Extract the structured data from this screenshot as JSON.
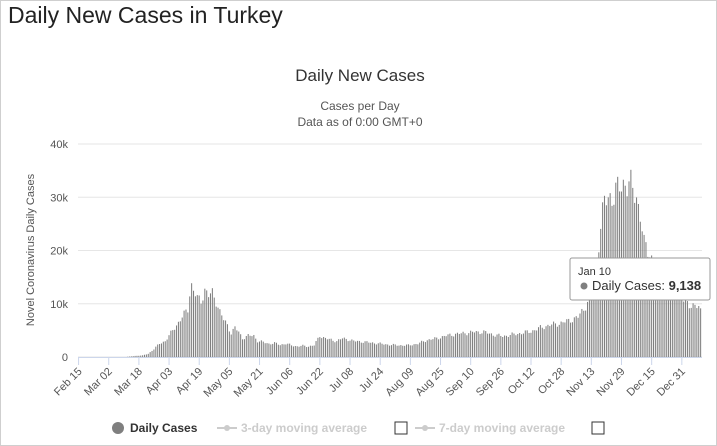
{
  "page_title": "Daily New Cases in Turkey",
  "chart_data": {
    "type": "bar",
    "title": "Daily New Cases",
    "subtitle_lines": [
      "Cases per Day",
      "Data as of 0:00 GMT+0"
    ],
    "ylabel": "Novel Coronavirus Daily Cases",
    "xlabel": "",
    "ylim": [
      0,
      40000
    ],
    "y_ticks": [
      0,
      10000,
      20000,
      30000,
      40000
    ],
    "y_tick_labels": [
      "0",
      "10k",
      "20k",
      "30k",
      "40k"
    ],
    "x_tick_labels": [
      "Feb 15",
      "Mar 02",
      "Mar 18",
      "Apr 03",
      "Apr 19",
      "May 05",
      "May 21",
      "Jun 06",
      "Jun 22",
      "Jul 08",
      "Jul 24",
      "Aug 09",
      "Aug 25",
      "Sep 10",
      "Sep 26",
      "Oct 12",
      "Oct 28",
      "Nov 13",
      "Nov 29",
      "Dec 15",
      "Dec 31"
    ],
    "start_date": "Feb 15",
    "day_count": 331,
    "series": [
      {
        "name": "Daily Cases",
        "color": "#7f7f7f",
        "keyframes": [
          [
            0,
            0
          ],
          [
            24,
            0
          ],
          [
            25,
            1
          ],
          [
            30,
            200
          ],
          [
            34,
            300
          ],
          [
            37,
            600
          ],
          [
            40,
            1500
          ],
          [
            43,
            2500
          ],
          [
            46,
            3000
          ],
          [
            48,
            4000
          ],
          [
            50,
            5000
          ],
          [
            52,
            6000
          ],
          [
            54,
            7000
          ],
          [
            56,
            8000
          ],
          [
            58,
            9000
          ],
          [
            59,
            12000
          ],
          [
            60,
            13500
          ],
          [
            61,
            12500
          ],
          [
            63,
            11000
          ],
          [
            65,
            10500
          ],
          [
            67,
            12700
          ],
          [
            69,
            11500
          ],
          [
            71,
            12000
          ],
          [
            73,
            10500
          ],
          [
            75,
            8500
          ],
          [
            77,
            7000
          ],
          [
            79,
            6000
          ],
          [
            81,
            4500
          ],
          [
            83,
            5500
          ],
          [
            85,
            4700
          ],
          [
            87,
            3500
          ],
          [
            90,
            4000
          ],
          [
            93,
            4000
          ],
          [
            95,
            3000
          ],
          [
            98,
            2800
          ],
          [
            101,
            2500
          ],
          [
            104,
            2600
          ],
          [
            107,
            2300
          ],
          [
            110,
            2500
          ],
          [
            113,
            2200
          ],
          [
            116,
            2000
          ],
          [
            119,
            2100
          ],
          [
            122,
            2000
          ],
          [
            125,
            2200
          ],
          [
            128,
            4000
          ],
          [
            131,
            3500
          ],
          [
            134,
            3200
          ],
          [
            137,
            3000
          ],
          [
            140,
            3500
          ],
          [
            143,
            3300
          ],
          [
            146,
            3000
          ],
          [
            150,
            2900
          ],
          [
            155,
            2700
          ],
          [
            160,
            2500
          ],
          [
            165,
            2300
          ],
          [
            170,
            2200
          ],
          [
            175,
            2200
          ],
          [
            180,
            2500
          ],
          [
            185,
            3200
          ],
          [
            190,
            3500
          ],
          [
            195,
            4000
          ],
          [
            200,
            4300
          ],
          [
            205,
            4500
          ],
          [
            210,
            4700
          ],
          [
            215,
            4700
          ],
          [
            220,
            4200
          ],
          [
            225,
            3900
          ],
          [
            230,
            4200
          ],
          [
            235,
            4500
          ],
          [
            240,
            4800
          ],
          [
            245,
            5500
          ],
          [
            250,
            6000
          ],
          [
            255,
            6300
          ],
          [
            260,
            6800
          ],
          [
            265,
            7500
          ],
          [
            268,
            9000
          ],
          [
            271,
            11000
          ],
          [
            274,
            15000
          ],
          [
            277,
            25000
          ],
          [
            279,
            29000
          ],
          [
            282,
            30000
          ],
          [
            285,
            31000
          ],
          [
            288,
            32000
          ],
          [
            290,
            33000
          ],
          [
            293,
            32000
          ],
          [
            296,
            30000
          ],
          [
            298,
            27000
          ],
          [
            300,
            21000
          ],
          [
            303,
            19500
          ],
          [
            306,
            17000
          ],
          [
            309,
            16000
          ],
          [
            312,
            15000
          ],
          [
            315,
            13000
          ],
          [
            318,
            11500
          ],
          [
            321,
            10500
          ],
          [
            324,
            10000
          ],
          [
            327,
            9500
          ],
          [
            330,
            9138
          ]
        ]
      },
      {
        "name": "3-day moving average",
        "color": "#cccccc"
      },
      {
        "name": "7-day moving average",
        "color": "#cccccc"
      }
    ],
    "tooltip": {
      "date": "Jan 10",
      "label": "Daily Cases",
      "value": "9,138"
    },
    "legend": [
      "Daily Cases",
      "3-day moving average",
      "7-day moving average"
    ],
    "legend_placement": "bottom"
  }
}
